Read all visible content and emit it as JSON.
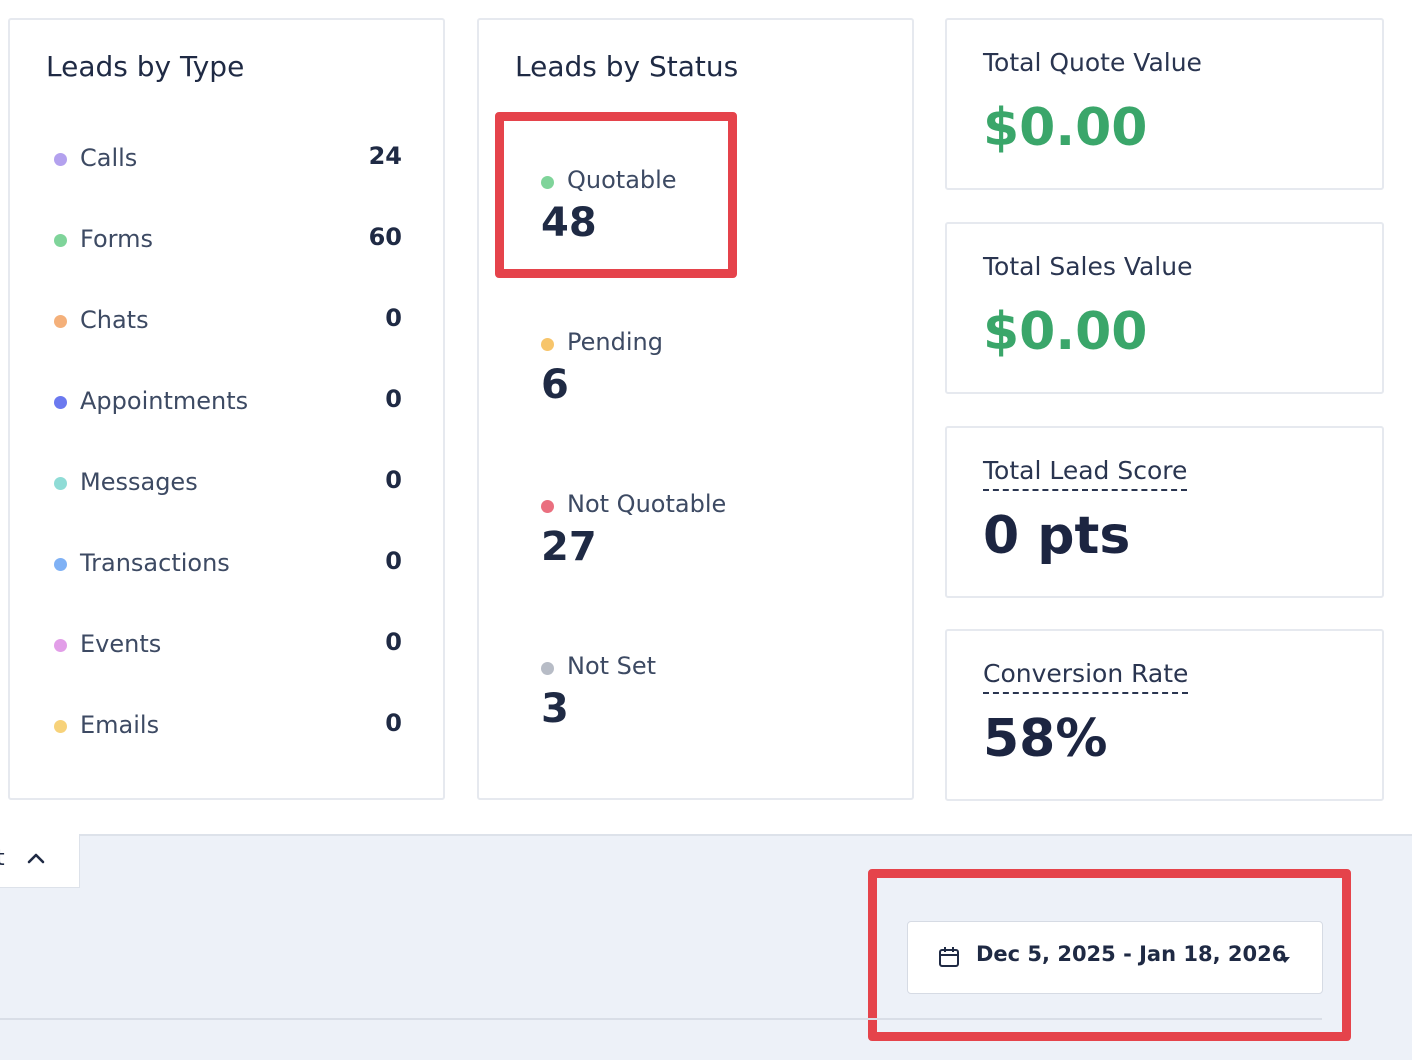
{
  "leads_by_type": {
    "title": "Leads by Type",
    "items": [
      {
        "label": "Calls",
        "value": "24",
        "color": "#b3a1ee"
      },
      {
        "label": "Forms",
        "value": "60",
        "color": "#7fd49a"
      },
      {
        "label": "Chats",
        "value": "0",
        "color": "#f4b07a"
      },
      {
        "label": "Appointments",
        "value": "0",
        "color": "#6b79ef"
      },
      {
        "label": "Messages",
        "value": "0",
        "color": "#8fdcd6"
      },
      {
        "label": "Transactions",
        "value": "0",
        "color": "#7fb1f5"
      },
      {
        "label": "Events",
        "value": "0",
        "color": "#e29ee8"
      },
      {
        "label": "Emails",
        "value": "0",
        "color": "#f7d27a"
      }
    ]
  },
  "leads_by_status": {
    "title": "Leads by Status",
    "items": [
      {
        "label": "Quotable",
        "value": "48",
        "color": "#7fd49a"
      },
      {
        "label": "Pending",
        "value": "6",
        "color": "#f7c56b"
      },
      {
        "label": "Not Quotable",
        "value": "27",
        "color": "#ea6f7f"
      },
      {
        "label": "Not Set",
        "value": "3",
        "color": "#b7bcc6"
      }
    ]
  },
  "metrics": {
    "total_quote": {
      "label": "Total Quote Value",
      "value": "$0.00"
    },
    "total_sales": {
      "label": "Total Sales Value",
      "value": "$0.00"
    },
    "lead_score": {
      "label": "Total Lead Score",
      "value": "0 pts"
    },
    "conversion": {
      "label": "Conversion Rate",
      "value": "58%"
    }
  },
  "collapse_tab": {
    "text": "t"
  },
  "date_range": {
    "label": "Dec 5, 2025 - Jan 18, 2026"
  },
  "colors": {
    "highlight": "#e5434b",
    "value_green": "#3aa66a",
    "panel_bg": "#edf1f8"
  }
}
